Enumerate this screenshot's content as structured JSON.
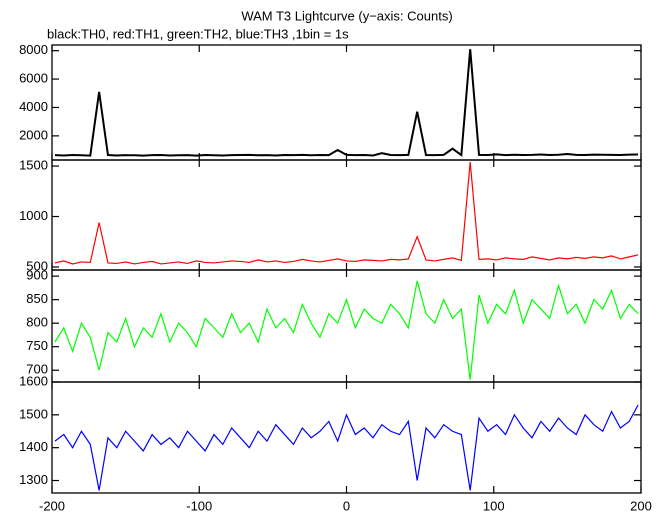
{
  "chart_data": [
    {
      "type": "line",
      "title": "WAM T3 Lightcurve (y−axis: Counts)",
      "subtitle": "black:TH0, red:TH1, green:TH2, blue:TH3 ,1bin = 1s",
      "x": [
        -198,
        -192,
        -186,
        -180,
        -174,
        -168,
        -162,
        -156,
        -150,
        -144,
        -138,
        -132,
        -126,
        -120,
        -114,
        -108,
        -102,
        -96,
        -90,
        -84,
        -78,
        -72,
        -66,
        -60,
        -54,
        -48,
        -42,
        -36,
        -30,
        -24,
        -18,
        -12,
        -6,
        0,
        6,
        12,
        18,
        24,
        30,
        36,
        42,
        48,
        54,
        60,
        66,
        72,
        78,
        84,
        90,
        96,
        102,
        108,
        114,
        120,
        126,
        132,
        138,
        144,
        150,
        156,
        162,
        168,
        174,
        180,
        186,
        192,
        198
      ],
      "values": [
        640,
        620,
        650,
        630,
        610,
        5100,
        650,
        620,
        640,
        630,
        610,
        640,
        650,
        620,
        630,
        640,
        610,
        650,
        630,
        620,
        640,
        650,
        660,
        630,
        640,
        620,
        650,
        640,
        660,
        630,
        650,
        640,
        1000,
        660,
        640,
        650,
        620,
        780,
        650,
        640,
        660,
        3700,
        650,
        640,
        660,
        1100,
        650,
        8100,
        660,
        650,
        700,
        640,
        670,
        650,
        660,
        690,
        650,
        670,
        720,
        660,
        650,
        680,
        670,
        660,
        650,
        680,
        690
      ],
      "color": "#000000",
      "xlim": [
        -200,
        200
      ],
      "xticks": [
        -200,
        -100,
        0,
        100,
        200
      ],
      "ylim": [
        300,
        8400
      ],
      "yticks": [
        2000,
        4000,
        6000,
        8000
      ]
    },
    {
      "type": "line",
      "x": [
        -198,
        -192,
        -186,
        -180,
        -174,
        -168,
        -162,
        -156,
        -150,
        -144,
        -138,
        -132,
        -126,
        -120,
        -114,
        -108,
        -102,
        -96,
        -90,
        -84,
        -78,
        -72,
        -66,
        -60,
        -54,
        -48,
        -42,
        -36,
        -30,
        -24,
        -18,
        -12,
        -6,
        0,
        6,
        12,
        18,
        24,
        30,
        36,
        42,
        48,
        54,
        60,
        66,
        72,
        78,
        84,
        90,
        96,
        102,
        108,
        114,
        120,
        126,
        132,
        138,
        144,
        150,
        156,
        162,
        168,
        174,
        180,
        186,
        192,
        198
      ],
      "values": [
        540,
        560,
        530,
        550,
        545,
        940,
        540,
        535,
        550,
        530,
        545,
        555,
        530,
        540,
        550,
        535,
        560,
        545,
        540,
        550,
        560,
        555,
        545,
        570,
        550,
        560,
        545,
        555,
        575,
        560,
        550,
        565,
        580,
        560,
        555,
        570,
        565,
        560,
        575,
        570,
        580,
        800,
        570,
        560,
        575,
        590,
        565,
        1540,
        575,
        580,
        570,
        590,
        580,
        575,
        600,
        585,
        570,
        590,
        580,
        595,
        585,
        600,
        590,
        610,
        580,
        600,
        620
      ],
      "color": "#ff0000",
      "xlim": [
        -200,
        200
      ],
      "xticks": [
        -200,
        -100,
        0,
        100,
        200
      ],
      "ylim": [
        470,
        1560
      ],
      "yticks": [
        500,
        1000,
        1500
      ]
    },
    {
      "type": "line",
      "x": [
        -198,
        -192,
        -186,
        -180,
        -174,
        -168,
        -162,
        -156,
        -150,
        -144,
        -138,
        -132,
        -126,
        -120,
        -114,
        -108,
        -102,
        -96,
        -90,
        -84,
        -78,
        -72,
        -66,
        -60,
        -54,
        -48,
        -42,
        -36,
        -30,
        -24,
        -18,
        -12,
        -6,
        0,
        6,
        12,
        18,
        24,
        30,
        36,
        42,
        48,
        54,
        60,
        66,
        72,
        78,
        84,
        90,
        96,
        102,
        108,
        114,
        120,
        126,
        132,
        138,
        144,
        150,
        156,
        162,
        168,
        174,
        180,
        186,
        192,
        198
      ],
      "values": [
        760,
        790,
        740,
        800,
        770,
        700,
        780,
        760,
        810,
        750,
        790,
        770,
        820,
        760,
        800,
        780,
        750,
        810,
        790,
        770,
        820,
        780,
        800,
        760,
        830,
        790,
        810,
        780,
        840,
        800,
        770,
        820,
        800,
        850,
        790,
        830,
        810,
        800,
        840,
        820,
        790,
        890,
        820,
        800,
        850,
        810,
        830,
        680,
        860,
        800,
        840,
        820,
        870,
        800,
        850,
        830,
        810,
        880,
        820,
        840,
        800,
        850,
        830,
        870,
        810,
        840,
        820
      ],
      "color": "#00ff00",
      "xlim": [
        -200,
        200
      ],
      "xticks": [
        -200,
        -100,
        0,
        100,
        200
      ],
      "ylim": [
        675,
        913
      ],
      "yticks": [
        700,
        750,
        800,
        850,
        900
      ]
    },
    {
      "type": "line",
      "x": [
        -198,
        -192,
        -186,
        -180,
        -174,
        -168,
        -162,
        -156,
        -150,
        -144,
        -138,
        -132,
        -126,
        -120,
        -114,
        -108,
        -102,
        -96,
        -90,
        -84,
        -78,
        -72,
        -66,
        -60,
        -54,
        -48,
        -42,
        -36,
        -30,
        -24,
        -18,
        -12,
        -6,
        0,
        6,
        12,
        18,
        24,
        30,
        36,
        42,
        48,
        54,
        60,
        66,
        72,
        78,
        84,
        90,
        96,
        102,
        108,
        114,
        120,
        126,
        132,
        138,
        144,
        150,
        156,
        162,
        168,
        174,
        180,
        186,
        192,
        198
      ],
      "values": [
        1420,
        1440,
        1400,
        1450,
        1410,
        1270,
        1430,
        1400,
        1450,
        1420,
        1390,
        1440,
        1410,
        1430,
        1400,
        1450,
        1420,
        1390,
        1440,
        1410,
        1460,
        1430,
        1400,
        1450,
        1420,
        1470,
        1440,
        1410,
        1460,
        1430,
        1450,
        1480,
        1420,
        1500,
        1440,
        1460,
        1430,
        1470,
        1450,
        1440,
        1480,
        1300,
        1460,
        1430,
        1470,
        1450,
        1440,
        1270,
        1490,
        1450,
        1470,
        1440,
        1500,
        1460,
        1430,
        1480,
        1450,
        1490,
        1460,
        1440,
        1500,
        1470,
        1450,
        1510,
        1460,
        1480,
        1530
      ],
      "color": "#0000ff",
      "xlim": [
        -200,
        200
      ],
      "xticks": [
        -200,
        -100,
        0,
        100,
        200
      ],
      "ylim": [
        1262,
        1600
      ],
      "yticks": [
        1300,
        1400,
        1500,
        1600
      ],
      "xtick_labels": true
    }
  ]
}
